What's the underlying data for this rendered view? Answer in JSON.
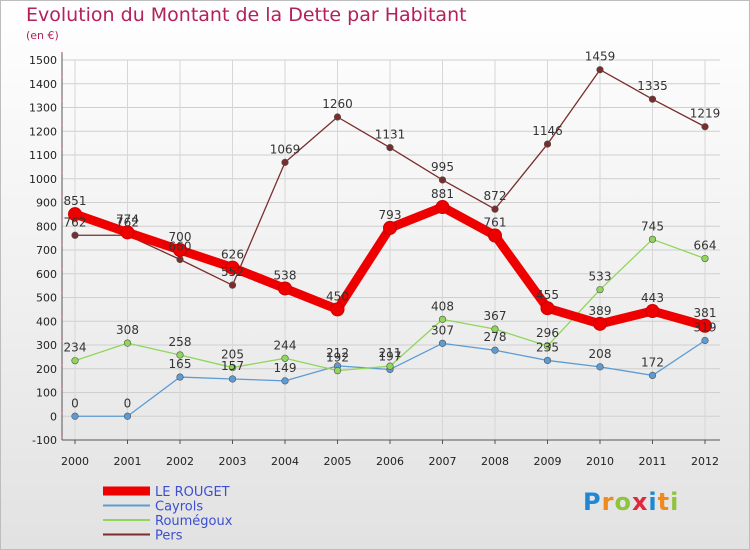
{
  "header": {
    "title": "Evolution du Montant de la Dette par Habitant",
    "subtitle": "(en €)"
  },
  "brand": {
    "logo_text": "Proxiti"
  },
  "chart_data": {
    "type": "line",
    "title": "Evolution du Montant de la Dette par Habitant",
    "ylabel": "(en €)",
    "xlabel": "",
    "ylim": [
      -100,
      1500
    ],
    "y_ticks": [
      -100,
      0,
      100,
      200,
      300,
      400,
      500,
      600,
      700,
      800,
      900,
      1000,
      1100,
      1200,
      1300,
      1400,
      1500
    ],
    "categories": [
      "2000",
      "2001",
      "2002",
      "2003",
      "2004",
      "2005",
      "2006",
      "2007",
      "2008",
      "2009",
      "2010",
      "2011",
      "2012"
    ],
    "legend_position": "bottom-left",
    "series": [
      {
        "name": "LE ROUGET",
        "color": "#ee0000",
        "highlight": true,
        "values": [
          851,
          774,
          700,
          626,
          538,
          450,
          793,
          881,
          761,
          455,
          389,
          443,
          381
        ]
      },
      {
        "name": "Cayrols",
        "color": "#5c9bd4",
        "highlight": false,
        "values": [
          0,
          0,
          165,
          157,
          149,
          212,
          197,
          307,
          278,
          235,
          208,
          172,
          319
        ]
      },
      {
        "name": "Roumégoux",
        "color": "#8fd65a",
        "highlight": false,
        "values": [
          234,
          308,
          258,
          205,
          244,
          192,
          211,
          408,
          367,
          296,
          533,
          745,
          664
        ]
      },
      {
        "name": "Pers",
        "color": "#7a2d2d",
        "highlight": false,
        "values": [
          762,
          762,
          660,
          552,
          1069,
          1260,
          1131,
          995,
          872,
          1146,
          1459,
          1335,
          1219
        ]
      }
    ]
  }
}
